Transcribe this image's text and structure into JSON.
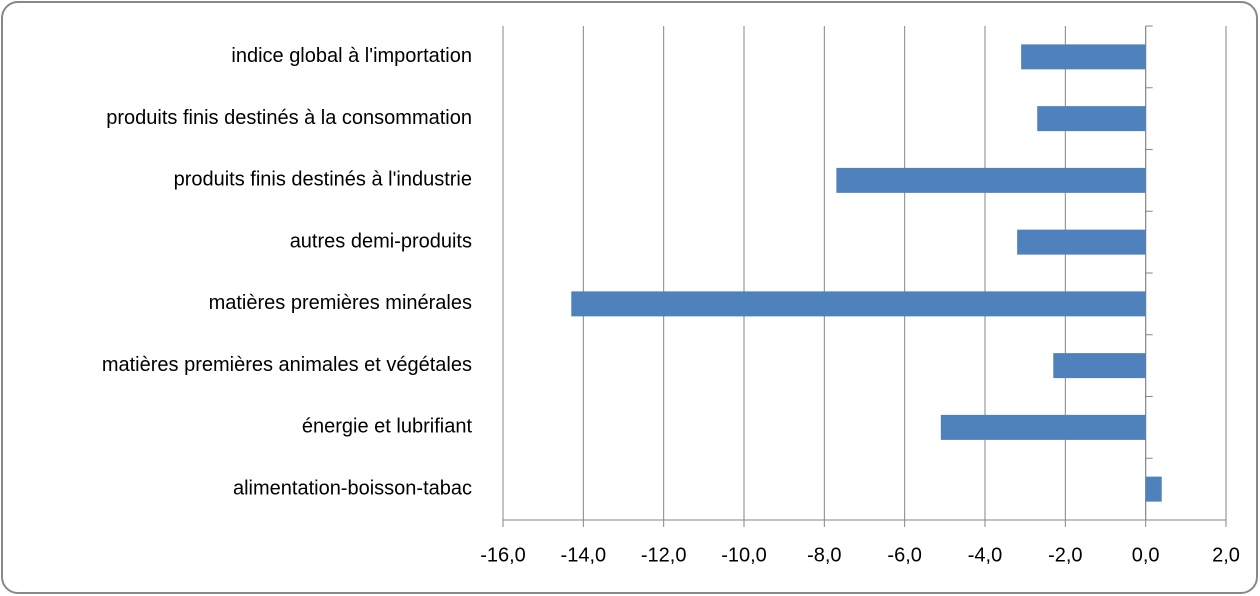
{
  "chart_data": {
    "type": "bar",
    "orientation": "horizontal",
    "categories": [
      "indice global à l'importation",
      "produits finis destinés à la consommation",
      "produits finis destinés à l'industrie",
      "autres demi-produits",
      "matières premières minérales",
      "matières premières animales et végétales",
      "énergie et lubrifiant",
      "alimentation-boisson-tabac"
    ],
    "values": [
      -3.1,
      -2.7,
      -7.7,
      -3.2,
      -14.3,
      -2.3,
      -5.1,
      0.4
    ],
    "color": "#4f81bd",
    "xlim": [
      -16,
      2
    ],
    "xticks": [
      {
        "value": -16,
        "label": "-16,0"
      },
      {
        "value": -14,
        "label": "-14,0"
      },
      {
        "value": -12,
        "label": "-12,0"
      },
      {
        "value": -10,
        "label": "-10,0"
      },
      {
        "value": -8,
        "label": "-8,0"
      },
      {
        "value": -6,
        "label": "-6,0"
      },
      {
        "value": -4,
        "label": "-4,0"
      },
      {
        "value": -2,
        "label": "-2,0"
      },
      {
        "value": 0,
        "label": "0,0"
      },
      {
        "value": 2,
        "label": "2,0"
      }
    ],
    "grid": true
  }
}
